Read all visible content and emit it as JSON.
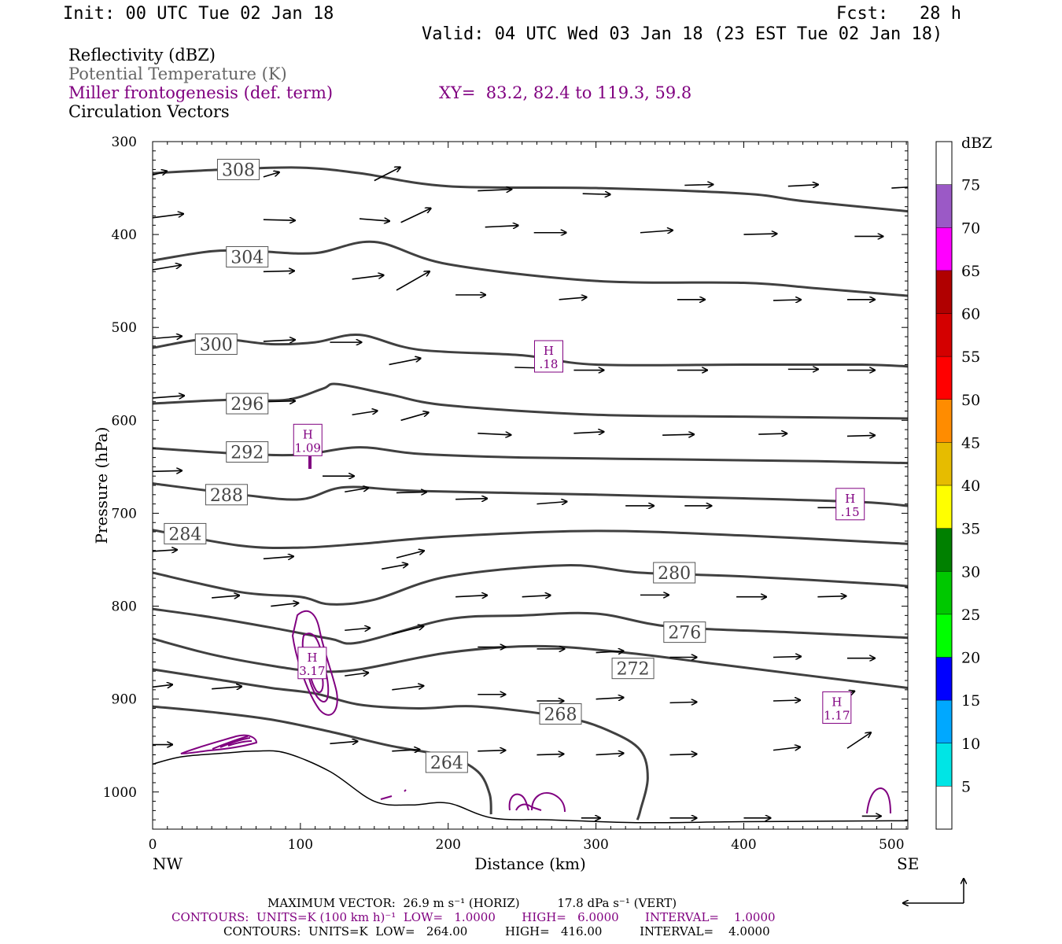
{
  "header": {
    "init": "Init: 00 UTC Tue 02 Jan 18",
    "fcst": "Fcst:   28 h",
    "valid": "Valid: 04 UTC Wed 03 Jan 18 (23 EST Tue 02 Jan 18)"
  },
  "legend": {
    "reflectivity": "Reflectivity (dBZ)",
    "theta": "Potential Temperature (K)",
    "miller": "Miller frontogenesis (def. term)",
    "xy": "XY=  83.2, 82.4 to 119.3, 59.8",
    "vectors": "Circulation Vectors"
  },
  "colors": {
    "theta_contour": "#404040",
    "frontogenesis_contour": "#800080",
    "terrain": "#000000",
    "vectors": "#000000"
  },
  "chart_data": {
    "type": "cross-section",
    "xlabel": "Distance (km)",
    "ylabel": "Pressure (hPa)",
    "xlim": [
      0,
      511
    ],
    "ylim": [
      1040,
      300
    ],
    "xticks": [
      0,
      100,
      200,
      300,
      400,
      500
    ],
    "yticks": [
      300,
      400,
      500,
      600,
      700,
      800,
      900,
      1000
    ],
    "x_end_labels": {
      "left": "NW",
      "right": "SE"
    },
    "theta_contours": [
      {
        "label": "308",
        "points": [
          [
            0,
            334
          ],
          [
            50,
            330
          ],
          [
            100,
            328
          ],
          [
            140,
            334
          ],
          [
            200,
            348
          ],
          [
            300,
            350
          ],
          [
            400,
            356
          ],
          [
            440,
            364
          ],
          [
            511,
            375
          ]
        ],
        "label_at": [
          58,
          330
        ]
      },
      {
        "label": "304",
        "points": [
          [
            0,
            428
          ],
          [
            40,
            418
          ],
          [
            70,
            418
          ],
          [
            110,
            420
          ],
          [
            150,
            408
          ],
          [
            200,
            432
          ],
          [
            300,
            450
          ],
          [
            400,
            452
          ],
          [
            450,
            458
          ],
          [
            511,
            466
          ]
        ],
        "label_at": [
          64,
          424
        ]
      },
      {
        "label": "300",
        "points": [
          [
            0,
            522
          ],
          [
            40,
            512
          ],
          [
            80,
            518
          ],
          [
            110,
            516
          ],
          [
            140,
            508
          ],
          [
            180,
            524
          ],
          [
            250,
            530
          ],
          [
            300,
            540
          ],
          [
            400,
            540
          ],
          [
            480,
            540
          ],
          [
            511,
            542
          ]
        ],
        "label_at": [
          43,
          518
        ]
      },
      {
        "label": "296",
        "points": [
          [
            0,
            582
          ],
          [
            50,
            578
          ],
          [
            90,
            578
          ],
          [
            115,
            566
          ],
          [
            125,
            561
          ],
          [
            160,
            572
          ],
          [
            200,
            584
          ],
          [
            300,
            594
          ],
          [
            400,
            596
          ],
          [
            511,
            598
          ]
        ],
        "label_at": [
          64,
          582
        ]
      },
      {
        "label": "292",
        "points": [
          [
            0,
            630
          ],
          [
            60,
            636
          ],
          [
            100,
            637
          ],
          [
            140,
            629
          ],
          [
            180,
            636
          ],
          [
            250,
            640
          ],
          [
            350,
            642
          ],
          [
            450,
            644
          ],
          [
            511,
            646
          ]
        ],
        "label_at": [
          64,
          634
        ]
      },
      {
        "label": "288",
        "points": [
          [
            0,
            668
          ],
          [
            60,
            680
          ],
          [
            100,
            685
          ],
          [
            130,
            672
          ],
          [
            180,
            676
          ],
          [
            300,
            680
          ],
          [
            400,
            684
          ],
          [
            480,
            688
          ],
          [
            511,
            692
          ]
        ],
        "label_at": [
          50,
          680
        ]
      },
      {
        "label": "284",
        "points": [
          [
            0,
            718
          ],
          [
            60,
            735
          ],
          [
            100,
            737
          ],
          [
            140,
            733
          ],
          [
            200,
            725
          ],
          [
            300,
            719
          ],
          [
            400,
            724
          ],
          [
            500,
            732
          ],
          [
            511,
            733
          ]
        ],
        "label_at": [
          22,
          722
        ]
      },
      {
        "label": "280",
        "points": [
          [
            0,
            764
          ],
          [
            60,
            785
          ],
          [
            100,
            790
          ],
          [
            120,
            798
          ],
          [
            150,
            793
          ],
          [
            200,
            768
          ],
          [
            280,
            756
          ],
          [
            330,
            764
          ],
          [
            400,
            768
          ],
          [
            500,
            777
          ],
          [
            511,
            780
          ]
        ],
        "label_at": [
          353,
          764
        ]
      },
      {
        "label": "276",
        "points": [
          [
            0,
            803
          ],
          [
            40,
            812
          ],
          [
            80,
            823
          ],
          [
            120,
            835
          ],
          [
            140,
            839
          ],
          [
            200,
            814
          ],
          [
            250,
            810
          ],
          [
            300,
            808
          ],
          [
            350,
            822
          ],
          [
            430,
            828
          ],
          [
            511,
            834
          ]
        ],
        "label_at": [
          360,
          828
        ]
      },
      {
        "label": "272",
        "points": [
          [
            0,
            835
          ],
          [
            40,
            852
          ],
          [
            80,
            864
          ],
          [
            110,
            870
          ],
          [
            140,
            868
          ],
          [
            200,
            850
          ],
          [
            260,
            843
          ],
          [
            320,
            850
          ],
          [
            380,
            862
          ],
          [
            440,
            874
          ],
          [
            511,
            888
          ]
        ],
        "label_at": [
          325,
          867
        ]
      },
      {
        "label": "268",
        "points": [
          [
            0,
            868
          ],
          [
            40,
            878
          ],
          [
            80,
            888
          ],
          [
            110,
            894
          ],
          [
            140,
            906
          ],
          [
            180,
            910
          ],
          [
            220,
            908
          ],
          [
            280,
            920
          ],
          [
            310,
            935
          ],
          [
            330,
            955
          ],
          [
            335,
            985
          ],
          [
            330,
            1020
          ],
          [
            328,
            1030
          ]
        ],
        "label_at": [
          276,
          916
        ]
      },
      {
        "label": "264",
        "points": [
          [
            0,
            908
          ],
          [
            40,
            914
          ],
          [
            80,
            922
          ],
          [
            120,
            935
          ],
          [
            160,
            950
          ],
          [
            200,
            962
          ],
          [
            220,
            978
          ],
          [
            228,
            1002
          ],
          [
            229,
            1024
          ]
        ],
        "label_at": [
          199,
          968
        ]
      }
    ],
    "frontogenesis_maxima": [
      {
        "label": "H",
        "value": ".18",
        "x": 268,
        "p": 532
      },
      {
        "label": "H",
        "value": "1.09",
        "x": 105,
        "p": 622
      },
      {
        "label": "H",
        "value": "3.17",
        "x": 108,
        "p": 862
      },
      {
        "label": "H",
        "value": ".15",
        "x": 472,
        "p": 691
      },
      {
        "label": "H",
        "value": "1.17",
        "x": 463,
        "p": 910
      }
    ],
    "terrain": [
      [
        0,
        970
      ],
      [
        20,
        962
      ],
      [
        50,
        958
      ],
      [
        70,
        956
      ],
      [
        90,
        958
      ],
      [
        120,
        978
      ],
      [
        150,
        1010
      ],
      [
        175,
        1014
      ],
      [
        200,
        1012
      ],
      [
        230,
        1028
      ],
      [
        270,
        1030
      ],
      [
        330,
        1033
      ],
      [
        400,
        1032
      ],
      [
        500,
        1031
      ],
      [
        511,
        1031
      ]
    ],
    "vectors": [
      [
        0,
        336,
        18,
        -5
      ],
      [
        75,
        338,
        20,
        -6
      ],
      [
        150,
        342,
        33,
        -17
      ],
      [
        220,
        353,
        43,
        -2
      ],
      [
        291,
        356,
        35,
        1
      ],
      [
        360,
        347,
        36,
        -1
      ],
      [
        430,
        348,
        38,
        -2
      ],
      [
        500,
        350,
        35,
        -2
      ],
      [
        0,
        382,
        39,
        -5
      ],
      [
        75,
        384,
        40,
        1
      ],
      [
        140,
        383,
        38,
        3
      ],
      [
        168,
        387,
        38,
        -18
      ],
      [
        225,
        392,
        42,
        -2
      ],
      [
        258,
        398,
        41,
        0
      ],
      [
        330,
        398,
        41,
        -3
      ],
      [
        400,
        400,
        42,
        -1
      ],
      [
        475,
        402,
        36,
        0
      ],
      [
        0,
        438,
        36,
        -6
      ],
      [
        75,
        440,
        39,
        -1
      ],
      [
        135,
        448,
        40,
        -5
      ],
      [
        165,
        460,
        42,
        -24
      ],
      [
        205,
        465,
        38,
        0
      ],
      [
        275,
        470,
        35,
        -3
      ],
      [
        355,
        470,
        35,
        0
      ],
      [
        420,
        471,
        35,
        -1
      ],
      [
        470,
        470,
        35,
        0
      ],
      [
        0,
        512,
        37,
        -3
      ],
      [
        75,
        515,
        40,
        -2
      ],
      [
        120,
        516,
        40,
        0
      ],
      [
        160,
        540,
        40,
        -8
      ],
      [
        245,
        543,
        42,
        1
      ],
      [
        285,
        546,
        38,
        0
      ],
      [
        355,
        546,
        38,
        0
      ],
      [
        430,
        545,
        38,
        0
      ],
      [
        470,
        546,
        35,
        0
      ],
      [
        0,
        576,
        40,
        -3
      ],
      [
        75,
        580,
        40,
        -1
      ],
      [
        135,
        594,
        32,
        -5
      ],
      [
        168,
        600,
        35,
        -10
      ],
      [
        220,
        614,
        42,
        2
      ],
      [
        285,
        614,
        38,
        -2
      ],
      [
        345,
        616,
        40,
        -1
      ],
      [
        410,
        615,
        36,
        -1
      ],
      [
        470,
        617,
        35,
        -1
      ],
      [
        0,
        655,
        37,
        -1
      ],
      [
        115,
        660,
        40,
        0
      ],
      [
        130,
        677,
        30,
        -5
      ],
      [
        165,
        678,
        38,
        -1
      ],
      [
        205,
        685,
        40,
        -1
      ],
      [
        260,
        690,
        38,
        -3
      ],
      [
        320,
        692,
        36,
        0
      ],
      [
        360,
        692,
        34,
        0
      ],
      [
        450,
        694,
        35,
        0
      ],
      [
        0,
        741,
        31,
        -2
      ],
      [
        75,
        749,
        38,
        -3
      ],
      [
        155,
        760,
        33,
        -6
      ],
      [
        165,
        748,
        35,
        -9
      ],
      [
        205,
        790,
        40,
        -2
      ],
      [
        250,
        790,
        36,
        -2
      ],
      [
        330,
        788,
        36,
        0
      ],
      [
        395,
        790,
        38,
        0
      ],
      [
        450,
        790,
        36,
        -1
      ],
      [
        40,
        791,
        35,
        -3
      ],
      [
        80,
        800,
        35,
        -4
      ],
      [
        130,
        826,
        32,
        -3
      ],
      [
        162,
        830,
        40,
        -10
      ],
      [
        220,
        844,
        35,
        0
      ],
      [
        260,
        846,
        35,
        0
      ],
      [
        300,
        850,
        35,
        -2
      ],
      [
        350,
        855,
        34,
        0
      ],
      [
        420,
        855,
        35,
        -1
      ],
      [
        470,
        856,
        35,
        0
      ],
      [
        0,
        887,
        25,
        -3
      ],
      [
        40,
        889,
        38,
        -3
      ],
      [
        130,
        875,
        30,
        -4
      ],
      [
        162,
        890,
        40,
        -5
      ],
      [
        220,
        895,
        35,
        0
      ],
      [
        260,
        902,
        34,
        0
      ],
      [
        300,
        900,
        35,
        -2
      ],
      [
        350,
        904,
        34,
        -1
      ],
      [
        420,
        902,
        34,
        -1
      ],
      [
        460,
        900,
        28,
        -10
      ],
      [
        0,
        949,
        25,
        0
      ],
      [
        120,
        948,
        35,
        -3
      ],
      [
        162,
        956,
        35,
        -2
      ],
      [
        220,
        956,
        35,
        -1
      ],
      [
        260,
        960,
        34,
        -1
      ],
      [
        300,
        960,
        35,
        -2
      ],
      [
        350,
        960,
        34,
        -1
      ],
      [
        420,
        955,
        34,
        -4
      ],
      [
        470,
        953,
        30,
        -20
      ],
      [
        290,
        1028,
        24,
        0
      ],
      [
        350,
        1028,
        34,
        0
      ],
      [
        400,
        1028,
        34,
        0
      ],
      [
        480,
        1026,
        24,
        0
      ]
    ],
    "colorbar": {
      "unit": "dBZ",
      "levels": [
        5,
        10,
        15,
        20,
        25,
        30,
        35,
        40,
        45,
        50,
        55,
        60,
        65,
        70,
        75
      ],
      "colors": [
        "#ffffff",
        "#00e5e5",
        "#00a8ff",
        "#0000ff",
        "#00ff00",
        "#00c800",
        "#008000",
        "#ffff00",
        "#e6bc00",
        "#ff8c00",
        "#ff0000",
        "#d40000",
        "#b00000",
        "#ff00ff",
        "#9b59c6",
        "#ffffff"
      ]
    }
  },
  "footer": {
    "line1": "MAXIMUM VECTOR:  26.9 m s⁻¹ (HORIZ)          17.8 dPa s⁻¹ (VERT)",
    "line2": "CONTOURS:  UNITS=K (100 km h)⁻¹  LOW=   1.0000       HIGH=   6.0000       INTERVAL=    1.0000",
    "line3": "CONTOURS:  UNITS=K  LOW=   264.00          HIGH=   416.00          INTERVAL=    4.0000"
  }
}
